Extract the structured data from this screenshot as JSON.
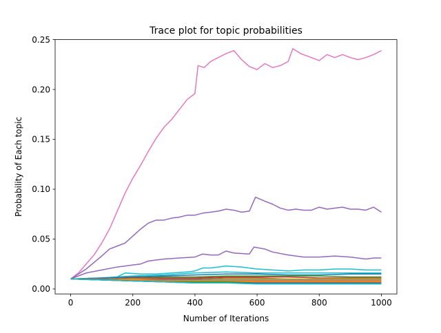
{
  "chart_data": {
    "type": "line",
    "title": "Trace plot for topic probabilities",
    "xlabel": "Number of Iterations",
    "ylabel": "Probability of Each topic",
    "xlim": [
      -50,
      1050
    ],
    "ylim": [
      -0.005,
      0.25
    ],
    "xticks": [
      0,
      200,
      400,
      600,
      800,
      1000
    ],
    "xtick_labels": [
      "0",
      "200",
      "400",
      "600",
      "800",
      "1000"
    ],
    "yticks": [
      0.0,
      0.05,
      0.1,
      0.15,
      0.2,
      0.25
    ],
    "ytick_labels": [
      "0.00",
      "0.05",
      "0.10",
      "0.15",
      "0.20",
      "0.25"
    ],
    "grid": false,
    "legend": "none",
    "series": [
      {
        "color": "#e377c2",
        "points": [
          [
            0,
            0.01
          ],
          [
            25,
            0.016
          ],
          [
            50,
            0.025
          ],
          [
            75,
            0.034
          ],
          [
            100,
            0.046
          ],
          [
            125,
            0.06
          ],
          [
            150,
            0.078
          ],
          [
            175,
            0.096
          ],
          [
            200,
            0.111
          ],
          [
            225,
            0.124
          ],
          [
            250,
            0.138
          ],
          [
            275,
            0.151
          ],
          [
            300,
            0.162
          ],
          [
            325,
            0.17
          ],
          [
            350,
            0.18
          ],
          [
            375,
            0.19
          ],
          [
            400,
            0.196
          ],
          [
            410,
            0.224
          ],
          [
            430,
            0.222
          ],
          [
            450,
            0.228
          ],
          [
            475,
            0.232
          ],
          [
            500,
            0.236
          ],
          [
            525,
            0.239
          ],
          [
            550,
            0.23
          ],
          [
            575,
            0.223
          ],
          [
            600,
            0.22
          ],
          [
            625,
            0.226
          ],
          [
            650,
            0.222
          ],
          [
            675,
            0.224
          ],
          [
            700,
            0.228
          ],
          [
            715,
            0.241
          ],
          [
            740,
            0.236
          ],
          [
            775,
            0.232
          ],
          [
            800,
            0.229
          ],
          [
            825,
            0.235
          ],
          [
            850,
            0.232
          ],
          [
            875,
            0.235
          ],
          [
            900,
            0.232
          ],
          [
            925,
            0.23
          ],
          [
            950,
            0.232
          ],
          [
            975,
            0.235
          ],
          [
            1000,
            0.239
          ]
        ]
      },
      {
        "color": "#9467bd",
        "points": [
          [
            0,
            0.01
          ],
          [
            50,
            0.02
          ],
          [
            100,
            0.033
          ],
          [
            125,
            0.04
          ],
          [
            150,
            0.043
          ],
          [
            175,
            0.046
          ],
          [
            200,
            0.053
          ],
          [
            225,
            0.06
          ],
          [
            250,
            0.066
          ],
          [
            275,
            0.069
          ],
          [
            300,
            0.069
          ],
          [
            325,
            0.071
          ],
          [
            350,
            0.072
          ],
          [
            375,
            0.074
          ],
          [
            400,
            0.074
          ],
          [
            425,
            0.076
          ],
          [
            450,
            0.077
          ],
          [
            475,
            0.078
          ],
          [
            500,
            0.08
          ],
          [
            525,
            0.079
          ],
          [
            550,
            0.077
          ],
          [
            575,
            0.078
          ],
          [
            595,
            0.092
          ],
          [
            625,
            0.088
          ],
          [
            650,
            0.085
          ],
          [
            675,
            0.081
          ],
          [
            700,
            0.079
          ],
          [
            725,
            0.08
          ],
          [
            750,
            0.079
          ],
          [
            775,
            0.079
          ],
          [
            800,
            0.082
          ],
          [
            825,
            0.08
          ],
          [
            850,
            0.081
          ],
          [
            875,
            0.082
          ],
          [
            900,
            0.08
          ],
          [
            925,
            0.08
          ],
          [
            950,
            0.079
          ],
          [
            975,
            0.082
          ],
          [
            1000,
            0.077
          ]
        ]
      },
      {
        "color": "#9467bd",
        "points": [
          [
            0,
            0.01
          ],
          [
            50,
            0.016
          ],
          [
            100,
            0.019
          ],
          [
            150,
            0.022
          ],
          [
            200,
            0.024
          ],
          [
            225,
            0.025
          ],
          [
            250,
            0.028
          ],
          [
            300,
            0.03
          ],
          [
            350,
            0.031
          ],
          [
            400,
            0.032
          ],
          [
            425,
            0.035
          ],
          [
            450,
            0.034
          ],
          [
            475,
            0.034
          ],
          [
            500,
            0.038
          ],
          [
            525,
            0.036
          ],
          [
            575,
            0.035
          ],
          [
            590,
            0.042
          ],
          [
            625,
            0.04
          ],
          [
            650,
            0.037
          ],
          [
            700,
            0.034
          ],
          [
            750,
            0.032
          ],
          [
            800,
            0.032
          ],
          [
            850,
            0.033
          ],
          [
            900,
            0.032
          ],
          [
            950,
            0.03
          ],
          [
            975,
            0.031
          ],
          [
            1000,
            0.031
          ]
        ]
      },
      {
        "color": "#17becf",
        "points": [
          [
            0,
            0.01
          ],
          [
            100,
            0.011
          ],
          [
            150,
            0.012
          ],
          [
            175,
            0.016
          ],
          [
            225,
            0.015
          ],
          [
            275,
            0.015
          ],
          [
            325,
            0.016
          ],
          [
            375,
            0.017
          ],
          [
            400,
            0.018
          ],
          [
            425,
            0.021
          ],
          [
            450,
            0.021
          ],
          [
            475,
            0.022
          ],
          [
            500,
            0.023
          ],
          [
            550,
            0.022
          ],
          [
            600,
            0.02
          ],
          [
            650,
            0.019
          ],
          [
            700,
            0.018
          ],
          [
            750,
            0.019
          ],
          [
            800,
            0.019
          ],
          [
            850,
            0.02
          ],
          [
            900,
            0.02
          ],
          [
            950,
            0.019
          ],
          [
            1000,
            0.019
          ]
        ]
      },
      {
        "color": "#17becf",
        "points": [
          [
            0,
            0.01
          ],
          [
            100,
            0.011
          ],
          [
            200,
            0.013
          ],
          [
            300,
            0.014
          ],
          [
            400,
            0.016
          ],
          [
            500,
            0.017
          ],
          [
            600,
            0.016
          ],
          [
            700,
            0.016
          ],
          [
            800,
            0.016
          ],
          [
            900,
            0.016
          ],
          [
            1000,
            0.016
          ]
        ]
      },
      {
        "color": "#1f77b4",
        "points": [
          [
            0,
            0.01
          ],
          [
            100,
            0.011
          ],
          [
            200,
            0.012
          ],
          [
            300,
            0.013
          ],
          [
            400,
            0.014
          ],
          [
            500,
            0.015
          ],
          [
            600,
            0.015
          ],
          [
            700,
            0.014
          ],
          [
            800,
            0.014
          ],
          [
            900,
            0.015
          ],
          [
            1000,
            0.015
          ]
        ]
      },
      {
        "color": "#2ca02c",
        "points": [
          [
            0,
            0.01
          ],
          [
            100,
            0.01
          ],
          [
            200,
            0.011
          ],
          [
            300,
            0.012
          ],
          [
            400,
            0.012
          ],
          [
            500,
            0.013
          ],
          [
            600,
            0.013
          ],
          [
            700,
            0.013
          ],
          [
            800,
            0.013
          ],
          [
            900,
            0.012
          ],
          [
            1000,
            0.012
          ]
        ]
      },
      {
        "color": "#d62728",
        "points": [
          [
            0,
            0.01
          ],
          [
            100,
            0.01
          ],
          [
            200,
            0.011
          ],
          [
            300,
            0.011
          ],
          [
            400,
            0.011
          ],
          [
            500,
            0.012
          ],
          [
            600,
            0.012
          ],
          [
            700,
            0.012
          ],
          [
            800,
            0.011
          ],
          [
            900,
            0.011
          ],
          [
            1000,
            0.011
          ]
        ]
      },
      {
        "color": "#8c564b",
        "points": [
          [
            0,
            0.01
          ],
          [
            100,
            0.01
          ],
          [
            200,
            0.01
          ],
          [
            300,
            0.01
          ],
          [
            400,
            0.01
          ],
          [
            500,
            0.011
          ],
          [
            600,
            0.011
          ],
          [
            700,
            0.01
          ],
          [
            800,
            0.01
          ],
          [
            900,
            0.01
          ],
          [
            1000,
            0.01
          ]
        ]
      },
      {
        "color": "#bcbd22",
        "points": [
          [
            0,
            0.01
          ],
          [
            100,
            0.01
          ],
          [
            200,
            0.01
          ],
          [
            300,
            0.009
          ],
          [
            400,
            0.009
          ],
          [
            500,
            0.01
          ],
          [
            600,
            0.01
          ],
          [
            700,
            0.01
          ],
          [
            800,
            0.01
          ],
          [
            900,
            0.01
          ],
          [
            1000,
            0.01
          ]
        ]
      },
      {
        "color": "#7f7f7f",
        "points": [
          [
            0,
            0.01
          ],
          [
            100,
            0.01
          ],
          [
            200,
            0.009
          ],
          [
            300,
            0.009
          ],
          [
            400,
            0.009
          ],
          [
            500,
            0.009
          ],
          [
            600,
            0.009
          ],
          [
            700,
            0.009
          ],
          [
            800,
            0.009
          ],
          [
            900,
            0.009
          ],
          [
            1000,
            0.009
          ]
        ]
      },
      {
        "color": "#ff7f0e",
        "points": [
          [
            0,
            0.01
          ],
          [
            100,
            0.009
          ],
          [
            200,
            0.009
          ],
          [
            300,
            0.008
          ],
          [
            400,
            0.008
          ],
          [
            500,
            0.008
          ],
          [
            600,
            0.008
          ],
          [
            700,
            0.008
          ],
          [
            800,
            0.008
          ],
          [
            900,
            0.008
          ],
          [
            1000,
            0.008
          ]
        ]
      },
      {
        "color": "#ff7f0e",
        "points": [
          [
            0,
            0.01
          ],
          [
            100,
            0.009
          ],
          [
            200,
            0.008
          ],
          [
            300,
            0.008
          ],
          [
            400,
            0.007
          ],
          [
            500,
            0.007
          ],
          [
            600,
            0.007
          ],
          [
            700,
            0.007
          ],
          [
            800,
            0.007
          ],
          [
            900,
            0.007
          ],
          [
            1000,
            0.007
          ]
        ]
      },
      {
        "color": "#2ca02c",
        "points": [
          [
            0,
            0.01
          ],
          [
            100,
            0.009
          ],
          [
            200,
            0.008
          ],
          [
            300,
            0.007
          ],
          [
            400,
            0.007
          ],
          [
            500,
            0.007
          ],
          [
            600,
            0.006
          ],
          [
            700,
            0.006
          ],
          [
            800,
            0.006
          ],
          [
            900,
            0.006
          ],
          [
            1000,
            0.006
          ]
        ]
      },
      {
        "color": "#1f77b4",
        "points": [
          [
            0,
            0.01
          ],
          [
            100,
            0.009
          ],
          [
            200,
            0.008
          ],
          [
            300,
            0.007
          ],
          [
            400,
            0.006
          ],
          [
            500,
            0.006
          ],
          [
            600,
            0.006
          ],
          [
            700,
            0.006
          ],
          [
            800,
            0.006
          ],
          [
            900,
            0.006
          ],
          [
            1000,
            0.006
          ]
        ]
      },
      {
        "color": "#17becf",
        "points": [
          [
            0,
            0.01
          ],
          [
            100,
            0.009
          ],
          [
            200,
            0.008
          ],
          [
            300,
            0.007
          ],
          [
            400,
            0.006
          ],
          [
            500,
            0.006
          ],
          [
            600,
            0.005
          ],
          [
            700,
            0.005
          ],
          [
            800,
            0.005
          ],
          [
            900,
            0.005
          ],
          [
            1000,
            0.005
          ]
        ]
      }
    ]
  }
}
